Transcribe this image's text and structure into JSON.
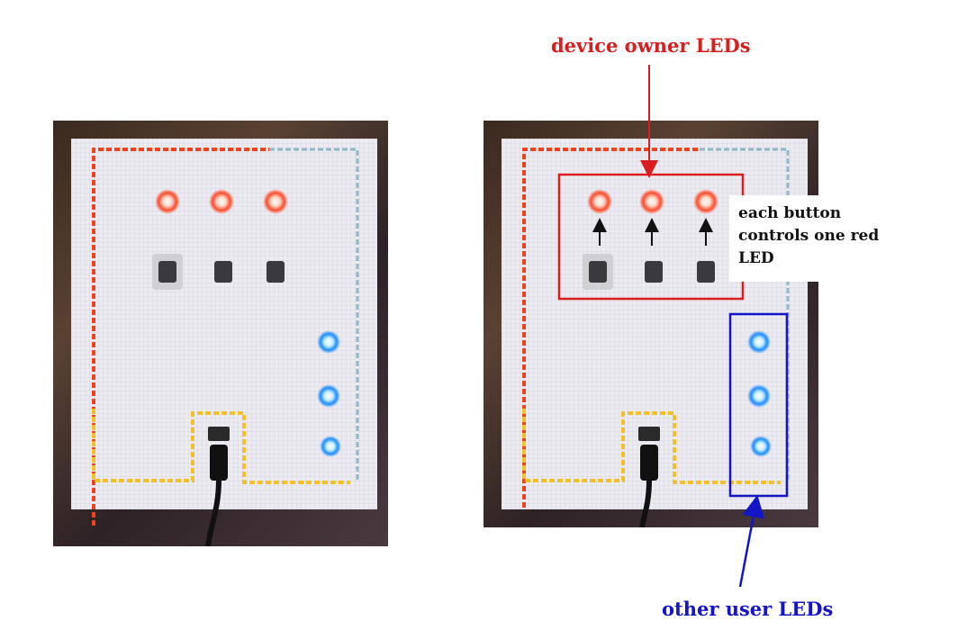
{
  "labels": {
    "device_owner": "device owner  LEDs",
    "other_user": "other user LEDs",
    "note": "each button controls one red LED"
  },
  "colors": {
    "owner_accent": "#d81e1e",
    "other_accent": "#1515c8",
    "red_led": "#ff5533",
    "blue_led": "#3aa8ff",
    "fabric": "#e9e6ee"
  },
  "photos": [
    {
      "name": "left-photo",
      "annotated": false
    },
    {
      "name": "right-photo",
      "annotated": true
    }
  ]
}
